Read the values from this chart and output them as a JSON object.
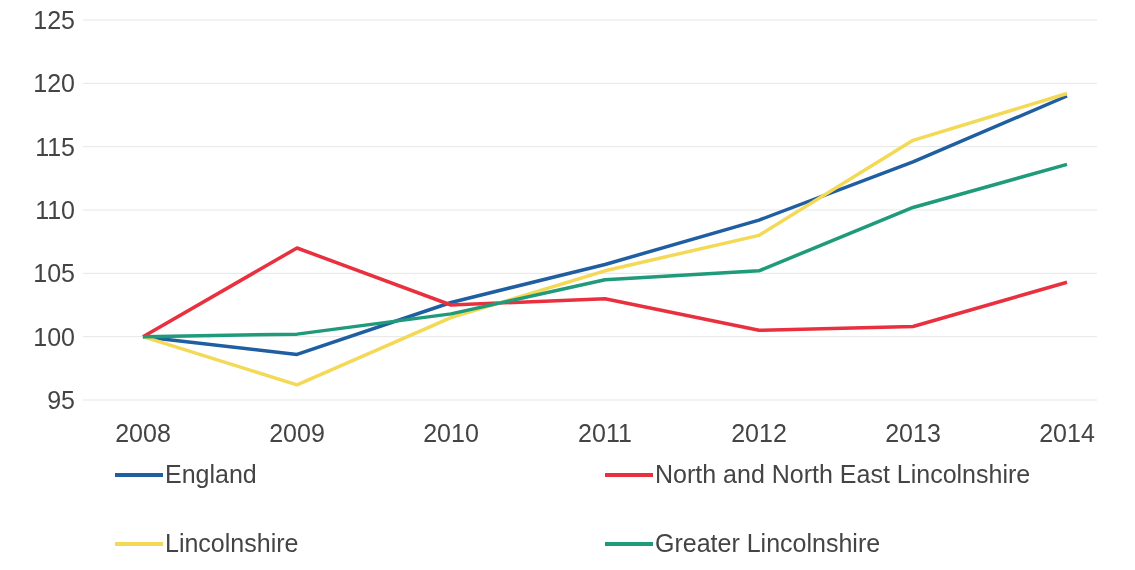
{
  "chart_data": {
    "type": "line",
    "categories": [
      "2008",
      "2009",
      "2010",
      "2011",
      "2012",
      "2013",
      "2014"
    ],
    "series": [
      {
        "name": "England",
        "color": "#1f5ea0",
        "values": [
          100,
          98.6,
          102.7,
          105.7,
          109.2,
          113.8,
          119
        ]
      },
      {
        "name": "North and North East Lincolnshire",
        "color": "#e8303f",
        "values": [
          100,
          107,
          102.5,
          103,
          100.5,
          100.8,
          104.3
        ]
      },
      {
        "name": "Lincolnshire",
        "color": "#f3d955",
        "values": [
          100,
          96.2,
          101.5,
          105.2,
          108,
          115.5,
          119.2
        ]
      },
      {
        "name": "Greater Lincolnshire",
        "color": "#1f9a7a",
        "values": [
          100,
          100.2,
          101.8,
          104.5,
          105.2,
          110.2,
          113.6
        ]
      }
    ],
    "ylim": [
      95,
      125
    ],
    "yticks": [
      95,
      100,
      105,
      110,
      115,
      120,
      125
    ],
    "grid": "y",
    "legend": "bottom",
    "marker": "none",
    "line_style": "solid"
  }
}
